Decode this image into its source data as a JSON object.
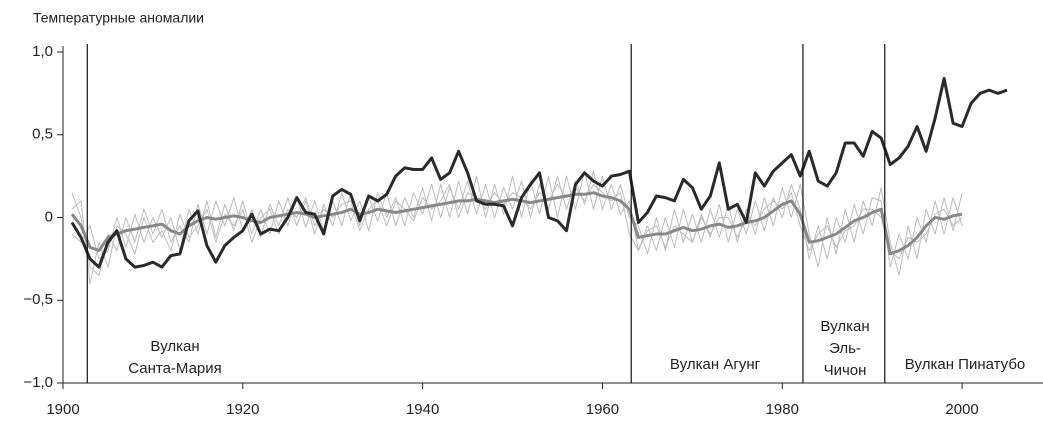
{
  "chart_data": {
    "type": "line",
    "title": "Температурные аномалии",
    "x": [
      1901,
      1902,
      1903,
      1904,
      1905,
      1906,
      1907,
      1908,
      1909,
      1910,
      1911,
      1912,
      1913,
      1914,
      1915,
      1916,
      1917,
      1918,
      1919,
      1920,
      1921,
      1922,
      1923,
      1924,
      1925,
      1926,
      1927,
      1928,
      1929,
      1930,
      1931,
      1932,
      1933,
      1934,
      1935,
      1936,
      1937,
      1938,
      1939,
      1940,
      1941,
      1942,
      1943,
      1944,
      1945,
      1946,
      1947,
      1948,
      1949,
      1950,
      1951,
      1952,
      1953,
      1954,
      1955,
      1956,
      1957,
      1958,
      1959,
      1960,
      1961,
      1962,
      1963,
      1964,
      1965,
      1966,
      1967,
      1968,
      1969,
      1970,
      1971,
      1972,
      1973,
      1974,
      1975,
      1976,
      1977,
      1978,
      1979,
      1980,
      1981,
      1982,
      1983,
      1984,
      1985,
      1986,
      1987,
      1988,
      1989,
      1990,
      1991,
      1992,
      1993,
      1994,
      1995,
      1996,
      1997,
      1998,
      1999,
      2000,
      2001,
      2002,
      2003,
      2004,
      2005
    ],
    "series": [
      {
        "color": "#bbbbbb",
        "values": [
          0.15,
          0.0,
          -0.3,
          -0.35,
          -0.1,
          -0.2,
          0.0,
          -0.15,
          0.05,
          -0.1,
          0.05,
          -0.15,
          -0.05,
          -0.15,
          0.08,
          -0.1,
          0.1,
          -0.05,
          0.12,
          -0.08,
          0.05,
          -0.12,
          0.08,
          -0.05,
          0.12,
          -0.05,
          0.1,
          -0.1,
          0.08,
          -0.05,
          0.15,
          -0.02,
          0.1,
          -0.08,
          0.15,
          0.0,
          0.12,
          -0.05,
          0.15,
          0.02,
          0.2,
          0.0,
          0.18,
          0.05,
          0.22,
          0.02,
          0.2,
          0.0,
          0.18,
          0.05,
          0.22,
          0.0,
          0.2,
          0.05,
          0.25,
          0.05,
          0.22,
          0.08,
          0.28,
          0.05,
          0.2,
          0.02,
          0.1,
          -0.2,
          -0.05,
          -0.2,
          0.0,
          -0.18,
          0.05,
          -0.15,
          0.02,
          -0.12,
          0.08,
          -0.15,
          0.05,
          -0.1,
          0.1,
          -0.08,
          0.12,
          0.0,
          0.2,
          0.05,
          -0.25,
          -0.05,
          -0.25,
          0.0,
          -0.15,
          0.08,
          -0.1,
          0.12,
          0.1,
          -0.3,
          -0.1,
          -0.25,
          0.0,
          -0.15,
          0.1,
          -0.1,
          0.12,
          -0.05,
          null,
          null,
          null,
          null,
          null
        ]
      },
      {
        "color": "#bbbbbb",
        "values": [
          -0.1,
          -0.15,
          -0.05,
          -0.25,
          -0.2,
          0.0,
          -0.18,
          0.02,
          -0.15,
          0.0,
          -0.12,
          0.0,
          -0.2,
          0.05,
          -0.1,
          0.1,
          -0.12,
          0.08,
          -0.08,
          0.1,
          -0.1,
          0.05,
          -0.1,
          0.1,
          -0.05,
          0.12,
          -0.06,
          0.1,
          -0.08,
          0.1,
          -0.05,
          0.15,
          -0.05,
          0.12,
          -0.02,
          0.15,
          -0.05,
          0.12,
          0.0,
          0.18,
          -0.02,
          0.2,
          0.0,
          0.22,
          0.02,
          0.25,
          0.0,
          0.2,
          0.02,
          0.25,
          0.0,
          0.22,
          0.02,
          0.25,
          0.0,
          0.25,
          0.05,
          0.28,
          0.05,
          0.25,
          0.05,
          0.2,
          0.0,
          -0.05,
          -0.22,
          0.0,
          -0.2,
          0.05,
          -0.15,
          0.02,
          -0.15,
          0.05,
          -0.12,
          0.08,
          -0.15,
          0.05,
          -0.1,
          0.12,
          -0.05,
          0.18,
          0.0,
          0.2,
          -0.1,
          -0.3,
          0.0,
          -0.22,
          0.05,
          -0.15,
          0.1,
          -0.05,
          0.18,
          -0.15,
          -0.35,
          -0.05,
          -0.25,
          0.05,
          -0.1,
          0.12,
          -0.08,
          0.15,
          null,
          null,
          null,
          null,
          null
        ]
      },
      {
        "color": "#bbbbbb",
        "values": [
          0.05,
          0.1,
          -0.4,
          -0.15,
          -0.3,
          -0.05,
          -0.1,
          -0.22,
          0.0,
          -0.15,
          -0.08,
          -0.2,
          0.02,
          -0.12,
          -0.05,
          0.05,
          -0.15,
          0.02,
          -0.05,
          0.05,
          -0.15,
          0.0,
          0.05,
          -0.1,
          0.05,
          0.0,
          0.12,
          -0.05,
          0.05,
          0.0,
          0.08,
          0.1,
          -0.08,
          0.05,
          0.1,
          -0.05,
          0.1,
          0.05,
          -0.02,
          0.12,
          0.05,
          0.1,
          0.2,
          0.0,
          0.15,
          0.12,
          0.05,
          0.15,
          0.08,
          0.15,
          0.12,
          0.05,
          0.15,
          0.1,
          0.2,
          0.12,
          0.18,
          0.1,
          0.2,
          0.15,
          0.1,
          0.15,
          -0.1,
          -0.2,
          -0.08,
          -0.05,
          -0.18,
          -0.05,
          -0.1,
          -0.15,
          0.0,
          -0.1,
          0.0,
          0.0,
          -0.12,
          0.0,
          -0.05,
          0.05,
          0.1,
          0.05,
          0.15,
          -0.05,
          -0.2,
          -0.1,
          -0.05,
          -0.18,
          -0.08,
          -0.05,
          0.05,
          0.05,
          0.0,
          -0.2,
          -0.25,
          -0.12,
          -0.15,
          -0.1,
          0.02,
          0.05,
          -0.05,
          0.0,
          null,
          null,
          null,
          null,
          null
        ]
      },
      {
        "color": "#888888",
        "values": [
          0.02,
          -0.05,
          -0.18,
          -0.2,
          -0.12,
          -0.1,
          -0.08,
          -0.07,
          -0.06,
          -0.05,
          -0.04,
          -0.08,
          -0.1,
          -0.05,
          -0.02,
          0.0,
          -0.01,
          0.0,
          0.01,
          0.0,
          -0.02,
          -0.03,
          0.0,
          0.01,
          0.02,
          0.03,
          0.02,
          0.0,
          0.01,
          0.02,
          0.03,
          0.05,
          0.02,
          0.03,
          0.05,
          0.04,
          0.03,
          0.04,
          0.05,
          0.06,
          0.07,
          0.08,
          0.09,
          0.1,
          0.1,
          0.11,
          0.1,
          0.09,
          0.1,
          0.11,
          0.1,
          0.09,
          0.1,
          0.11,
          0.12,
          0.13,
          0.14,
          0.14,
          0.15,
          0.13,
          0.12,
          0.1,
          0.05,
          -0.12,
          -0.11,
          -0.1,
          -0.1,
          -0.08,
          -0.06,
          -0.08,
          -0.07,
          -0.05,
          -0.04,
          -0.06,
          -0.05,
          -0.03,
          -0.02,
          0.0,
          0.04,
          0.08,
          0.1,
          0.02,
          -0.15,
          -0.14,
          -0.12,
          -0.1,
          -0.06,
          -0.02,
          0.0,
          0.03,
          0.05,
          -0.22,
          -0.2,
          -0.17,
          -0.12,
          -0.05,
          0.0,
          -0.01,
          0.01,
          0.02,
          null,
          null,
          null,
          null,
          null
        ]
      },
      {
        "color": "#2a2a2a",
        "values": [
          -0.03,
          -0.12,
          -0.25,
          -0.3,
          -0.15,
          -0.08,
          -0.25,
          -0.3,
          -0.29,
          -0.27,
          -0.3,
          -0.23,
          -0.22,
          -0.02,
          0.04,
          -0.17,
          -0.27,
          -0.17,
          -0.12,
          -0.08,
          0.02,
          -0.1,
          -0.07,
          -0.08,
          0.0,
          0.12,
          0.03,
          0.02,
          -0.1,
          0.13,
          0.17,
          0.14,
          -0.02,
          0.13,
          0.1,
          0.14,
          0.25,
          0.3,
          0.29,
          0.29,
          0.36,
          0.23,
          0.27,
          0.4,
          0.27,
          0.1,
          0.08,
          0.08,
          0.07,
          -0.05,
          0.12,
          0.2,
          0.27,
          0.0,
          -0.02,
          -0.08,
          0.2,
          0.27,
          0.22,
          0.19,
          0.25,
          0.26,
          0.28,
          -0.03,
          0.03,
          0.13,
          0.12,
          0.1,
          0.23,
          0.18,
          0.05,
          0.13,
          0.33,
          0.05,
          0.08,
          -0.03,
          0.27,
          0.19,
          0.28,
          0.33,
          0.38,
          0.25,
          0.4,
          0.22,
          0.19,
          0.27,
          0.45,
          0.45,
          0.37,
          0.52,
          0.48,
          0.32,
          0.36,
          0.43,
          0.55,
          0.4,
          0.6,
          0.84,
          0.57,
          0.55,
          0.69,
          0.75,
          0.77,
          0.75,
          0.77
        ]
      }
    ],
    "xlim": [
      1900,
      2009
    ],
    "xticks": [
      1900,
      1920,
      1940,
      1960,
      1980,
      2000
    ],
    "ylim": [
      -1.0,
      1.0
    ],
    "yticks": [
      {
        "value": -1.0,
        "label": "−1,0"
      },
      {
        "value": -0.5,
        "label": "−0,5"
      },
      0,
      {
        "value": 0.5,
        "label": "0,5"
      },
      {
        "value": 1.0,
        "label": "1,0"
      }
    ],
    "annotations": [
      {
        "x": 1902.7,
        "text": [
          "Вулкан",
          "Санта-Мария"
        ]
      },
      {
        "x": 1963.2,
        "text": [
          "Вулкан Агунг"
        ]
      },
      {
        "x": 1982.3,
        "text": [
          "Вулкан",
          "Эль-",
          "Чичон"
        ]
      },
      {
        "x": 1991.4,
        "text": [
          "Вулкан Пинатубо"
        ]
      }
    ]
  }
}
